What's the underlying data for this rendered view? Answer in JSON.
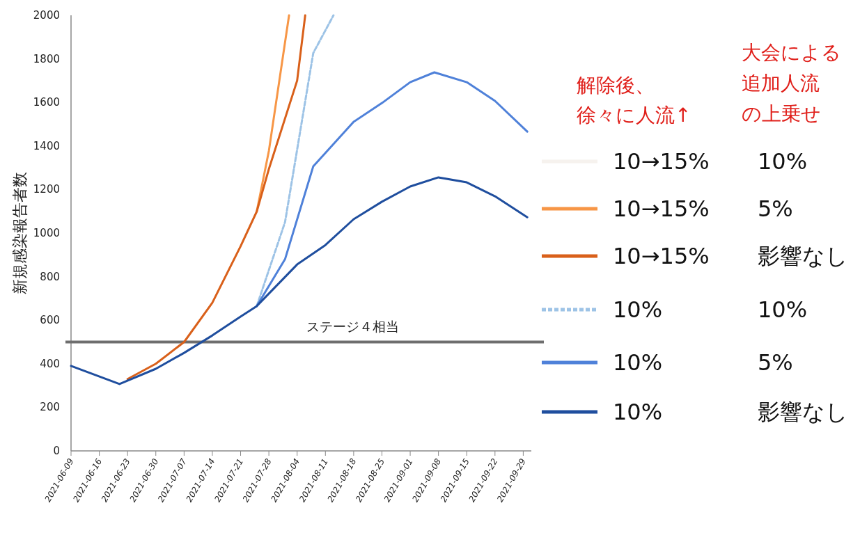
{
  "chart_data": {
    "type": "line",
    "ylabel": "新規感染報告者数",
    "legend_title": "解除後、徐々に人流↑",
    "annotations": [
      "大会による",
      "追加人流",
      "の上乗せ"
    ],
    "xlim": [
      "2021-06-09",
      "2021-10-01"
    ],
    "xticks": [
      "2021-06-09",
      "2021-06-16",
      "2021-06-23",
      "2021-06-30",
      "2021-07-07",
      "2021-07-14",
      "2021-07-21",
      "2021-07-28",
      "2021-08-04",
      "2021-08-11",
      "2021-08-18",
      "2021-08-25",
      "2021-09-01",
      "2021-09-08",
      "2021-09-15",
      "2021-09-22",
      "2021-09-29"
    ],
    "ylim": [
      0,
      2000
    ],
    "yticks": [
      0,
      200,
      400,
      600,
      800,
      1000,
      1200,
      1400,
      1600,
      1800,
      2000
    ],
    "grid": false,
    "legend": "right",
    "marker": "none",
    "ref_lines": [
      {
        "axis": "y",
        "value": 500,
        "label": "ステージ４相当",
        "color": "#6e6e6e"
      }
    ],
    "series": [
      {
        "name": "10→15%\t10%",
        "color": "#f6f2ee",
        "values": [
          null
        ]
      },
      {
        "name": "10→15%\t5%",
        "color": "#f79646",
        "x": [
          "2021-07-25",
          "2021-07-28",
          "2021-08-02"
        ],
        "values": [
          1099,
          1377,
          2000
        ]
      },
      {
        "name": "10→15%\t影響なし",
        "color": "#d9601a",
        "x": [
          "2021-06-23",
          "2021-06-30",
          "2021-07-07",
          "2021-07-14",
          "2021-07-21",
          "2021-07-25",
          "2021-07-28",
          "2021-08-04",
          "2021-08-06"
        ],
        "values": [
          330,
          400,
          500,
          680,
          940,
          1099,
          1294,
          1700,
          2000
        ]
      },
      {
        "name": "10%\t10%",
        "color": "#9dc3e6",
        "line_style": "dashed",
        "x": [
          "2021-07-25",
          "2021-08-01",
          "2021-08-08",
          "2021-08-13"
        ],
        "values": [
          665,
          1050,
          1827,
          2000
        ]
      },
      {
        "name": "10%\t5%",
        "color": "#4f81d9",
        "x": [
          "2021-07-25",
          "2021-08-01",
          "2021-08-08",
          "2021-08-18",
          "2021-08-25",
          "2021-09-01",
          "2021-09-07",
          "2021-09-15",
          "2021-09-22",
          "2021-09-30"
        ],
        "values": [
          665,
          880,
          1307,
          1511,
          1597,
          1693,
          1738,
          1693,
          1607,
          1466
        ]
      },
      {
        "name": "10%\t影響なし",
        "color": "#1f4e9e",
        "x": [
          "2021-06-09",
          "2021-06-21",
          "2021-06-30",
          "2021-07-07",
          "2021-07-14",
          "2021-07-21",
          "2021-07-25",
          "2021-08-04",
          "2021-08-11",
          "2021-08-18",
          "2021-08-25",
          "2021-09-01",
          "2021-09-08",
          "2021-09-15",
          "2021-09-22",
          "2021-09-30"
        ],
        "values": [
          390,
          307,
          377,
          450,
          530,
          617,
          665,
          856,
          945,
          1064,
          1144,
          1214,
          1256,
          1233,
          1169,
          1073
        ]
      }
    ]
  }
}
